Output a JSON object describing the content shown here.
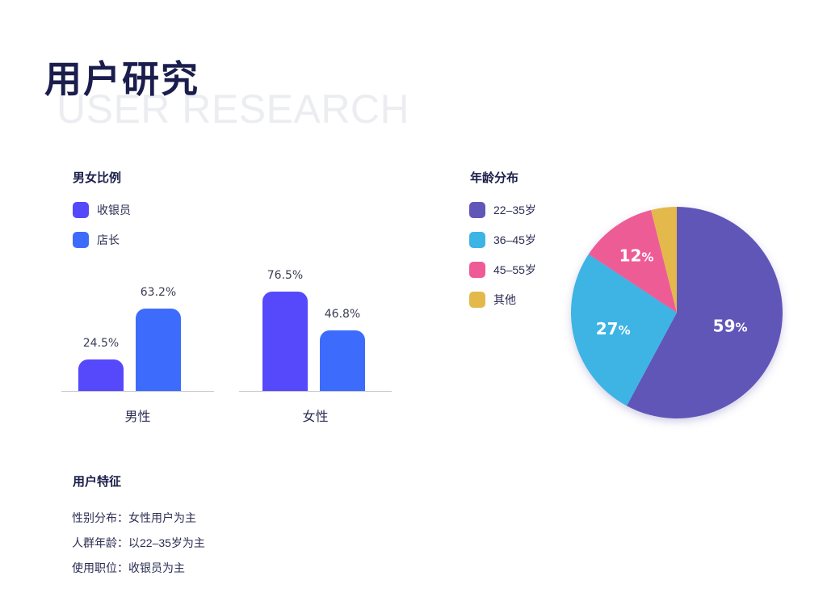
{
  "page": {
    "title_cn": "用户研究",
    "title_en": "USER RESEARCH"
  },
  "gender": {
    "title": "男女比例",
    "legend": [
      {
        "label": "收银员",
        "color": "#5549fb"
      },
      {
        "label": "店长",
        "color": "#3d6cfd"
      }
    ]
  },
  "age": {
    "title": "年龄分布",
    "legend": [
      {
        "label": "22–35岁",
        "color": "#6157b8"
      },
      {
        "label": "36–45岁",
        "color": "#3cb4e4"
      },
      {
        "label": "45–55岁",
        "color": "#ee5b96"
      },
      {
        "label": "其他",
        "color": "#e3b94c"
      }
    ]
  },
  "features": {
    "title": "用户特征",
    "lines": [
      {
        "key": "性别分布：",
        "value": "女性用户为主"
      },
      {
        "key": "人群年龄：",
        "value": "以22–35岁为主"
      },
      {
        "key": "使用职位：",
        "value": "收银员为主"
      }
    ]
  },
  "chart_data": [
    {
      "type": "bar",
      "title": "男女比例",
      "categories": [
        "男性",
        "女性"
      ],
      "series": [
        {
          "name": "收银员",
          "values": [
            24.5,
            76.5
          ],
          "labels": [
            "24.5%",
            "76.5%"
          ],
          "color": "#5549fb"
        },
        {
          "name": "店长",
          "values": [
            63.2,
            46.8
          ],
          "labels": [
            "63.2%",
            "46.8%"
          ],
          "color": "#3d6cfd"
        }
      ],
      "ylim": [
        0,
        100
      ],
      "legend": "top-left",
      "grid": false
    },
    {
      "type": "pie",
      "title": "年龄分布",
      "slices": [
        {
          "name": "22–35岁",
          "value": 59,
          "label": "59",
          "color": "#6157b8"
        },
        {
          "name": "36–45岁",
          "value": 27,
          "label": "27",
          "color": "#3cb4e4"
        },
        {
          "name": "45–55岁",
          "value": 12,
          "label": "12",
          "color": "#ee5b96"
        },
        {
          "name": "其他",
          "value": 4,
          "label": "",
          "color": "#e3b94c"
        }
      ],
      "label_suffix": "%",
      "legend": "left"
    }
  ]
}
